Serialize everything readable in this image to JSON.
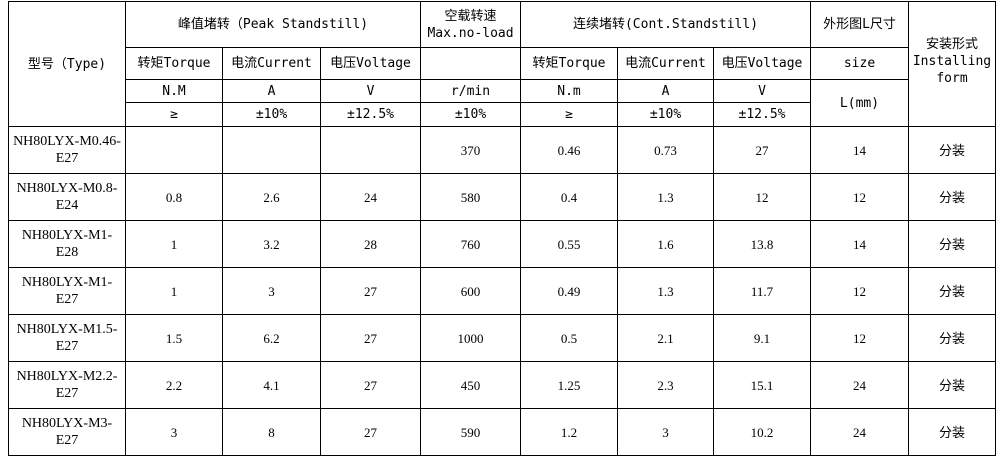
{
  "header": {
    "type": "型号（Type)",
    "peak": "峰值堵转（Peak Standstill)",
    "noload": "空载转速",
    "noload_en": "Max.no-load",
    "cont": "连续堵转(Cont.Standstill)",
    "size_cn": "外形图L尺寸",
    "install_cn": "安装形式",
    "install_en": "Installing form",
    "torque": "转矩Torque",
    "current": "电流Current",
    "voltage": "电压Voltage",
    "size": "size",
    "unit_peak_torque": "N.M",
    "unit_a": "A",
    "unit_v": "V",
    "unit_rpm": "r/min",
    "unit_cont_torque": "N.m",
    "unit_l": "L(mm)",
    "tol_ge": "≥",
    "tol_10": "±10%",
    "tol_125": "±12.5%"
  },
  "rows": [
    {
      "type": "NH80LYX-M0.46-E27",
      "pt": "",
      "pc": "",
      "pv": "",
      "speed": "370",
      "ct": "0.46",
      "cc": "0.73",
      "cv": "27",
      "l": "14",
      "install": "分装"
    },
    {
      "type": "NH80LYX-M0.8-E24",
      "pt": "0.8",
      "pc": "2.6",
      "pv": "24",
      "speed": "580",
      "ct": "0.4",
      "cc": "1.3",
      "cv": "12",
      "l": "12",
      "install": "分装"
    },
    {
      "type": "NH80LYX-M1-E28",
      "pt": "1",
      "pc": "3.2",
      "pv": "28",
      "speed": "760",
      "ct": "0.55",
      "cc": "1.6",
      "cv": "13.8",
      "l": "14",
      "install": "分装"
    },
    {
      "type": "NH80LYX-M1-E27",
      "pt": "1",
      "pc": "3",
      "pv": "27",
      "speed": "600",
      "ct": "0.49",
      "cc": "1.3",
      "cv": "11.7",
      "l": "12",
      "install": "分装"
    },
    {
      "type": "NH80LYX-M1.5-E27",
      "pt": "1.5",
      "pc": "6.2",
      "pv": "27",
      "speed": "1000",
      "ct": "0.5",
      "cc": "2.1",
      "cv": "9.1",
      "l": "12",
      "install": "分装"
    },
    {
      "type": "NH80LYX-M2.2-E27",
      "pt": "2.2",
      "pc": "4.1",
      "pv": "27",
      "speed": "450",
      "ct": "1.25",
      "cc": "2.3",
      "cv": "15.1",
      "l": "24",
      "install": "分装"
    },
    {
      "type": "NH80LYX-M3-E27",
      "pt": "3",
      "pc": "8",
      "pv": "27",
      "speed": "590",
      "ct": "1.2",
      "cc": "3",
      "cv": "10.2",
      "l": "24",
      "install": "分装"
    }
  ]
}
